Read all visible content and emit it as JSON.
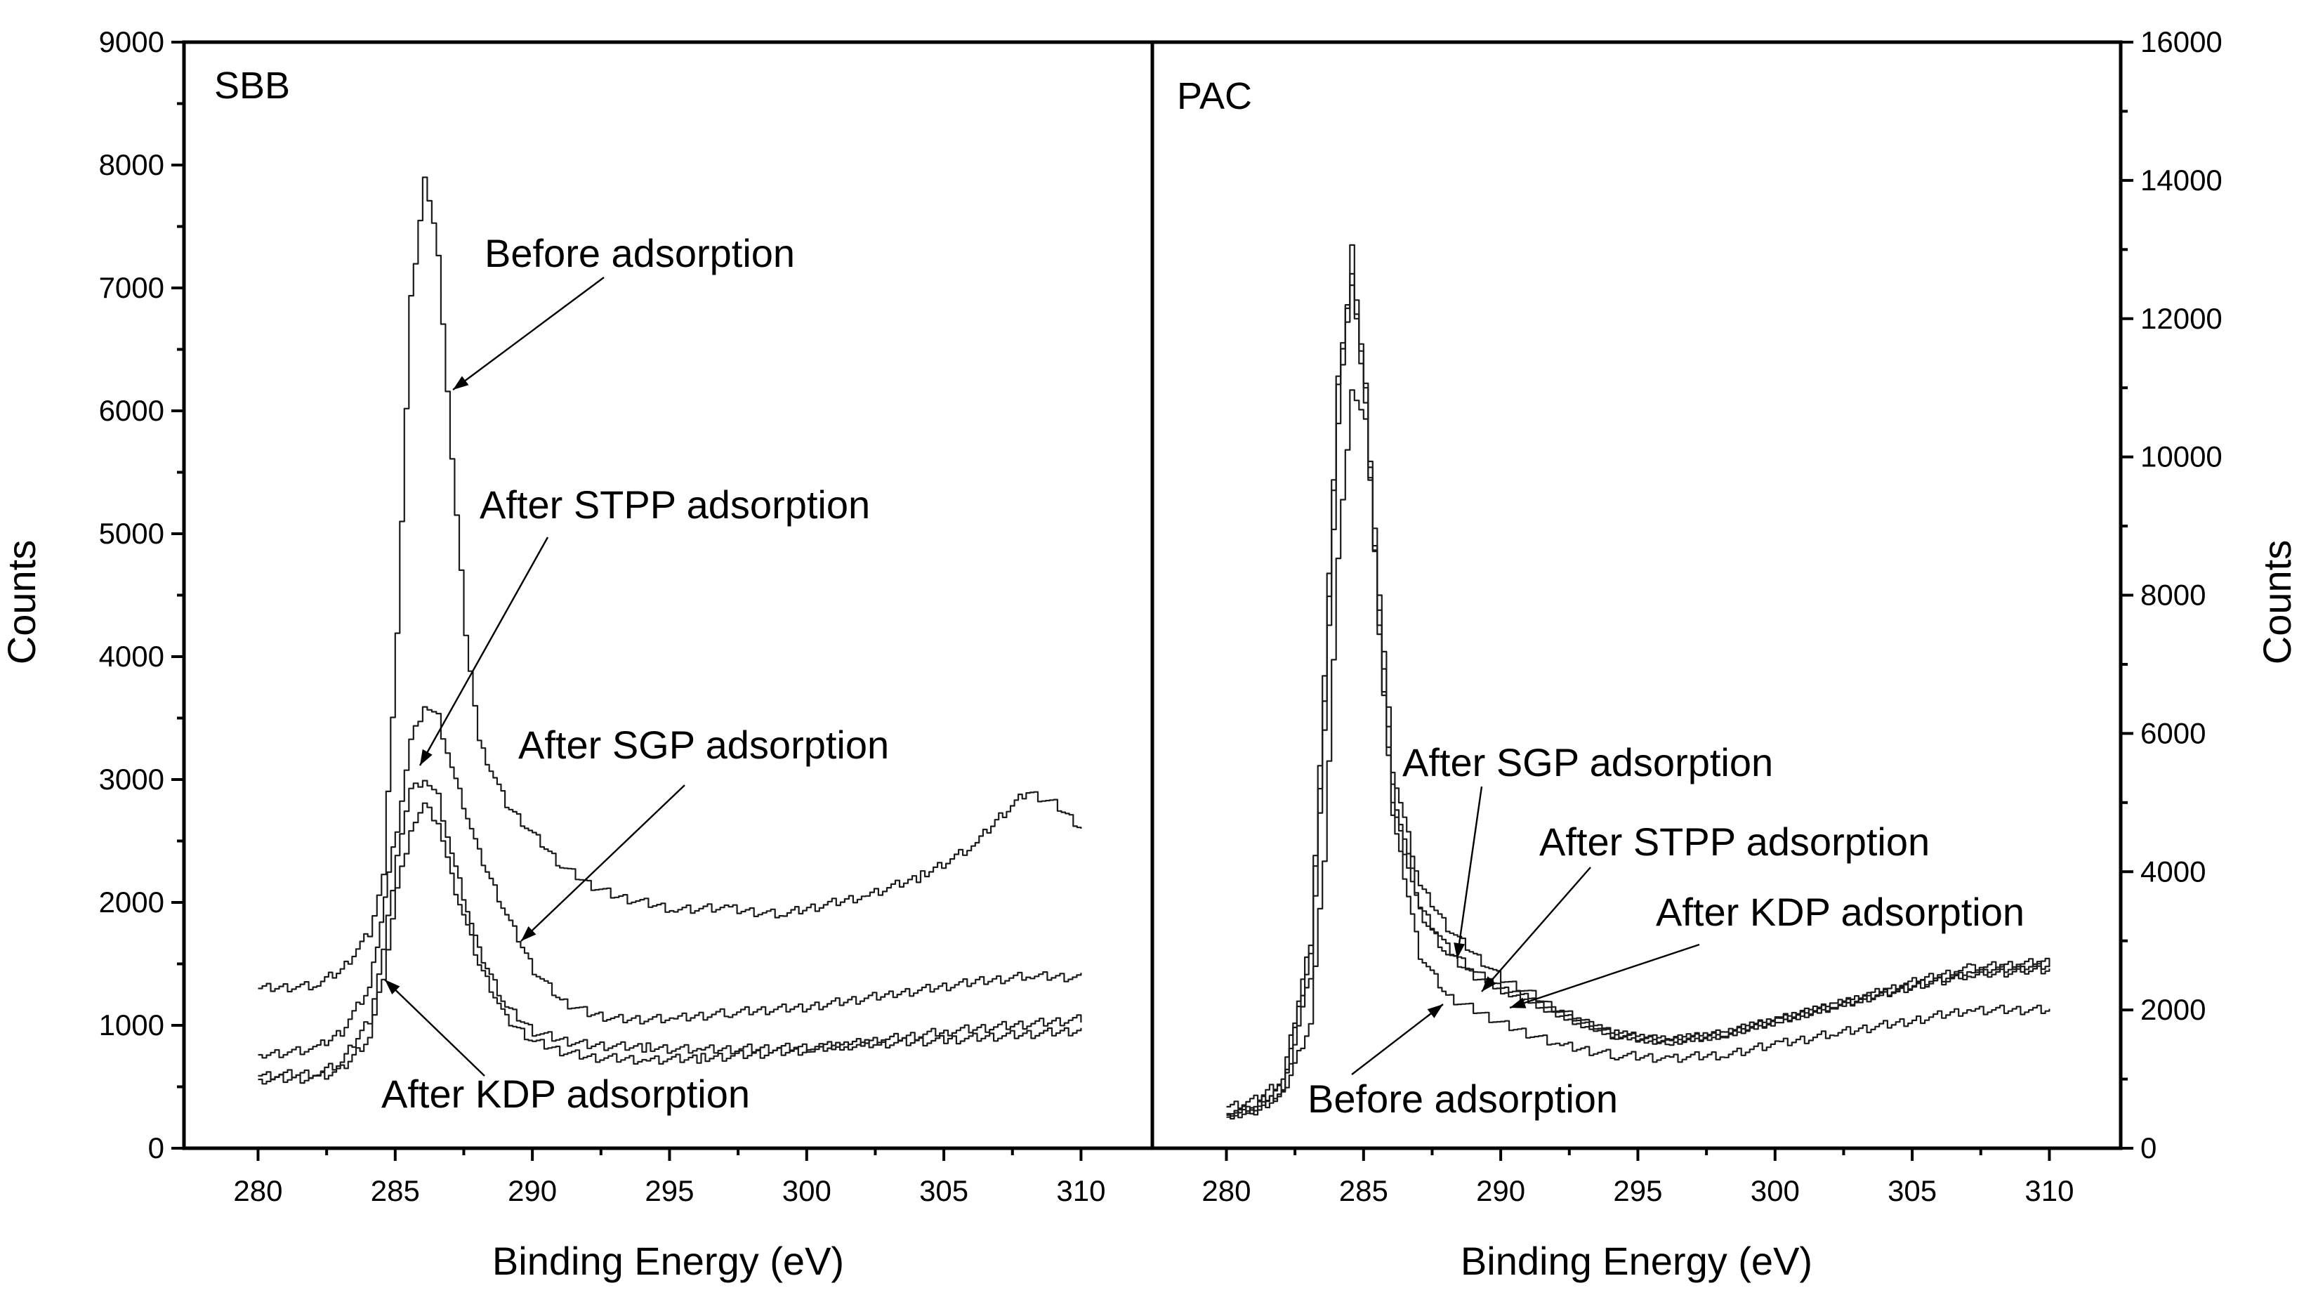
{
  "chart_data": [
    {
      "type": "line",
      "panel_label": "SBB",
      "xlabel": "Binding Energy (eV)",
      "ylabel": "Counts",
      "xlim": [
        277.3,
        312.6
      ],
      "ylim": [
        0,
        9000
      ],
      "x_ticks": [
        280,
        285,
        290,
        295,
        300,
        305,
        310
      ],
      "x_tick_labels": [
        "280",
        "285",
        "290",
        "295",
        "300",
        "305",
        "310"
      ],
      "y_ticks": [
        0,
        1000,
        2000,
        3000,
        4000,
        5000,
        6000,
        7000,
        8000,
        9000
      ],
      "y_tick_labels": [
        "0",
        "1000",
        "2000",
        "3000",
        "4000",
        "5000",
        "6000",
        "7000",
        "8000",
        "9000"
      ],
      "series": [
        {
          "name": "Before adsorption",
          "x": [
            280,
            282,
            283,
            284,
            284.5,
            285,
            285.5,
            286,
            286.5,
            287,
            287.5,
            288,
            289,
            290,
            291,
            292,
            293,
            295,
            297,
            299,
            300,
            302,
            304,
            306,
            307,
            308,
            309,
            310
          ],
          "y": [
            1300,
            1320,
            1450,
            1750,
            2200,
            4200,
            6900,
            7900,
            7300,
            5600,
            4200,
            3300,
            2800,
            2550,
            2300,
            2150,
            2050,
            1950,
            1950,
            1900,
            1950,
            2050,
            2200,
            2450,
            2700,
            2900,
            2800,
            2600
          ]
        },
        {
          "name": "After SGP adsorption",
          "x": [
            280,
            282,
            283,
            284,
            285,
            285.5,
            286,
            286.5,
            287,
            288,
            289,
            290,
            291,
            292,
            293,
            295,
            297,
            300,
            303,
            306,
            308,
            310
          ],
          "y": [
            760,
            800,
            950,
            1300,
            2600,
            3300,
            3600,
            3500,
            3100,
            2400,
            1900,
            1450,
            1200,
            1100,
            1050,
            1050,
            1100,
            1150,
            1250,
            1350,
            1400,
            1390
          ]
        },
        {
          "name": "After STPP adsorption",
          "x": [
            280,
            282,
            283,
            284,
            284.5,
            285,
            285.5,
            286,
            286.5,
            287,
            288,
            289,
            290,
            291,
            292,
            294,
            296,
            300,
            305,
            310
          ],
          "y": [
            590,
            610,
            700,
            1050,
            1600,
            2400,
            2900,
            3000,
            2850,
            2400,
            1600,
            1150,
            950,
            880,
            840,
            820,
            800,
            820,
            880,
            960
          ]
        },
        {
          "name": "After KDP adsorption",
          "x": [
            280,
            282,
            283,
            284,
            284.5,
            285,
            285.5,
            286,
            286.5,
            287,
            288,
            289,
            290,
            291,
            292,
            294,
            296,
            300,
            305,
            310
          ],
          "y": [
            560,
            570,
            640,
            900,
            1400,
            2100,
            2600,
            2780,
            2650,
            2200,
            1500,
            1050,
            870,
            790,
            740,
            720,
            730,
            800,
            950,
            1050
          ]
        }
      ],
      "annotations": [
        "Before adsorption",
        "After STPP adsorption",
        "After SGP adsorption",
        "After KDP adsorption"
      ]
    },
    {
      "type": "line",
      "panel_label": "PAC",
      "xlabel": "Binding Energy (eV)",
      "ylabel": "Counts",
      "y_axis_side": "right",
      "xlim": [
        277.3,
        312.6
      ],
      "ylim": [
        0,
        16000
      ],
      "x_ticks": [
        280,
        285,
        290,
        295,
        300,
        305,
        310
      ],
      "x_tick_labels": [
        "280",
        "285",
        "290",
        "295",
        "300",
        "305",
        "310"
      ],
      "y_ticks": [
        0,
        2000,
        4000,
        6000,
        8000,
        10000,
        12000,
        14000,
        16000
      ],
      "y_tick_labels": [
        "0",
        "2000",
        "4000",
        "6000",
        "8000",
        "10000",
        "12000",
        "14000",
        "16000"
      ],
      "series": [
        {
          "name": "Before adsorption",
          "x": [
            280,
            281,
            282,
            283,
            283.5,
            284,
            284.5,
            285,
            285.5,
            286,
            287,
            288,
            289,
            290,
            292,
            294,
            296,
            298,
            300,
            302,
            305,
            307,
            310
          ],
          "y": [
            450,
            550,
            800,
            2500,
            6000,
            10500,
            13000,
            11000,
            7500,
            4800,
            2800,
            2200,
            2000,
            1800,
            1500,
            1350,
            1300,
            1350,
            1500,
            1650,
            1850,
            2000,
            2000
          ]
        },
        {
          "name": "After SGP adsorption",
          "x": [
            280,
            281,
            282,
            283,
            283.5,
            284,
            284.5,
            285,
            285.5,
            286,
            287,
            288,
            289,
            290,
            291,
            292,
            294,
            296,
            298,
            300,
            302,
            305,
            307,
            310
          ],
          "y": [
            500,
            600,
            900,
            2800,
            6500,
            11000,
            12500,
            11000,
            8000,
            5500,
            3800,
            3200,
            2800,
            2450,
            2250,
            2000,
            1650,
            1550,
            1650,
            1850,
            2050,
            2350,
            2550,
            2650
          ]
        },
        {
          "name": "After STPP adsorption",
          "x": [
            280,
            281,
            282,
            283,
            283.5,
            284,
            284.5,
            285,
            285.5,
            286,
            287,
            288,
            289,
            290,
            291,
            292,
            294,
            296,
            298,
            300,
            302,
            305,
            307,
            310
          ],
          "y": [
            600,
            700,
            1000,
            3000,
            6800,
            11200,
            12600,
            10800,
            7500,
            5000,
            3400,
            2800,
            2500,
            2300,
            2150,
            1950,
            1650,
            1550,
            1650,
            1850,
            2050,
            2400,
            2600,
            2700
          ]
        },
        {
          "name": "After KDP adsorption",
          "x": [
            280,
            281,
            282,
            283,
            283.5,
            284,
            284.5,
            285,
            285.5,
            286,
            287,
            288,
            289,
            290,
            291,
            292,
            294,
            296,
            298,
            300,
            302,
            305,
            307,
            310
          ],
          "y": [
            480,
            560,
            780,
            1800,
            4200,
            8500,
            11000,
            10500,
            7800,
            5200,
            3500,
            2900,
            2550,
            2300,
            2150,
            1950,
            1650,
            1550,
            1650,
            1850,
            2050,
            2350,
            2500,
            2600
          ]
        }
      ],
      "annotations": [
        "After SGP adsorption",
        "After STPP adsorption",
        "After KDP adsorption",
        "Before adsorption"
      ]
    }
  ]
}
